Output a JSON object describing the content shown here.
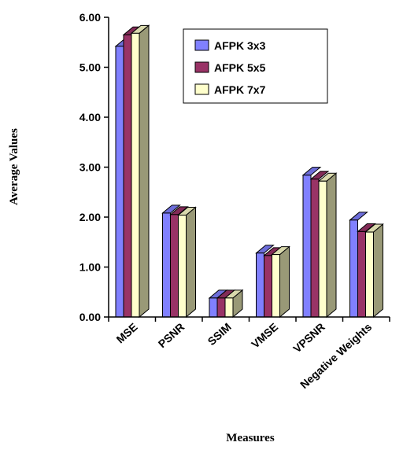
{
  "chart_data": {
    "type": "bar",
    "categories": [
      "MSE",
      "PSNR",
      "SSIM",
      "VMSE",
      "VPSNR",
      "Negative Weights"
    ],
    "series": [
      {
        "name": "AFPK 3x3",
        "color": "#8080ff",
        "values": [
          5.42,
          2.08,
          0.38,
          1.28,
          2.84,
          1.94
        ]
      },
      {
        "name": "AFPK 5x5",
        "color": "#993366",
        "values": [
          5.65,
          2.05,
          0.38,
          1.23,
          2.76,
          1.71
        ]
      },
      {
        "name": "AFPK 7x7",
        "color": "#ffffcc",
        "values": [
          5.68,
          2.04,
          0.38,
          1.25,
          2.72,
          1.7
        ]
      }
    ],
    "y_ticks": [
      "0.00",
      "1.00",
      "2.00",
      "3.00",
      "4.00",
      "5.00",
      "6.00"
    ],
    "ylim": [
      0,
      6
    ],
    "xlabel": "Measures",
    "ylabel": "Average Values",
    "grid": false,
    "legend_position": "top-right",
    "style": "3d-columns",
    "side_color": "#999977"
  }
}
